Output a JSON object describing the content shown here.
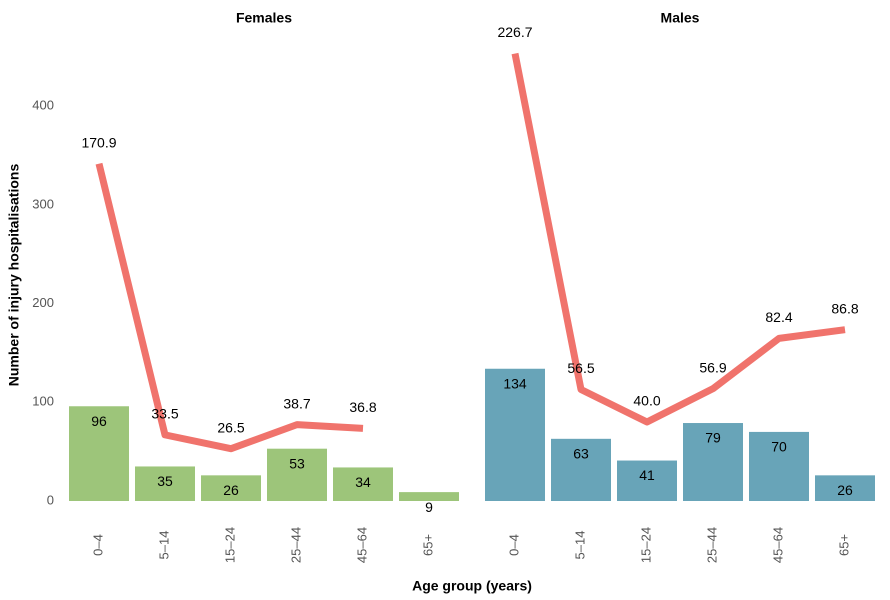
{
  "chart_data": {
    "type": "bar",
    "ylabel": "Number of injury hospitalisations",
    "xlabel": "Age group (years)",
    "ylim": [
      0,
      460
    ],
    "yticks": [
      0,
      100,
      200,
      300,
      400
    ],
    "y2lim": [
      0,
      230
    ],
    "panels": [
      {
        "title": "Females",
        "categories": [
          "0–4",
          "5–14",
          "15–24",
          "25–44",
          "45–64",
          "65+"
        ],
        "series": [
          {
            "color": "#9dc57a",
            "values": [
              96,
              35,
              26,
              53,
              34,
              9
            ]
          },
          {
            "type": "line",
            "axis": "y2",
            "color": "#f0736c",
            "values": [
              170.9,
              33.5,
              26.5,
              38.7,
              36.8,
              null
            ],
            "value_labels": [
              "170.9",
              "33.5",
              "26.5",
              "38.7",
              "36.8",
              null
            ]
          }
        ]
      },
      {
        "title": "Males",
        "categories": [
          "0–4",
          "5–14",
          "15–24",
          "25–44",
          "45–64",
          "65+"
        ],
        "series": [
          {
            "color": "#68a4b8",
            "values": [
              134,
              63,
              41,
              79,
              70,
              26
            ]
          },
          {
            "type": "line",
            "axis": "y2",
            "color": "#f0736c",
            "values": [
              226.7,
              56.5,
              40.0,
              56.9,
              82.4,
              86.8
            ],
            "value_labels": [
              "226.7",
              "56.5",
              "40.0",
              "56.9",
              "82.4",
              "86.8"
            ]
          }
        ]
      }
    ]
  }
}
